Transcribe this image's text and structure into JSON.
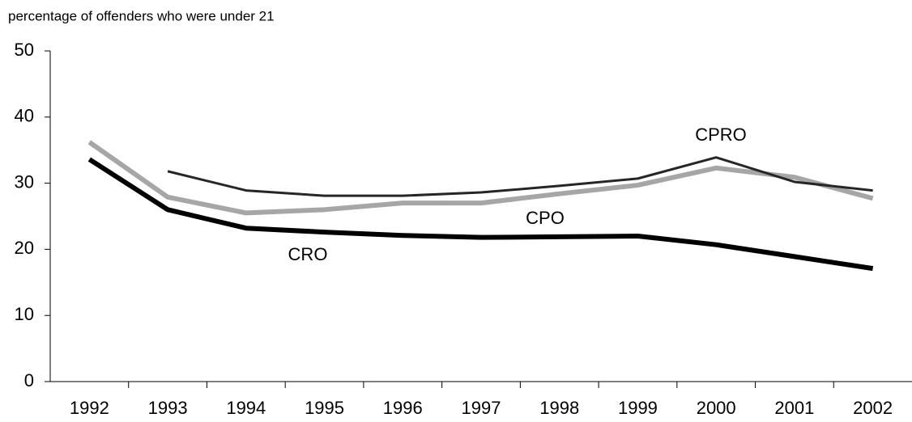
{
  "chart_data": {
    "type": "line",
    "y_axis_label": "percentage of offenders who were under 21",
    "categories": [
      "1992",
      "1993",
      "1994",
      "1995",
      "1996",
      "1997",
      "1998",
      "1999",
      "2000",
      "2001",
      "2002"
    ],
    "series": [
      {
        "name": "CRO",
        "color": "#000000",
        "values": [
          33.6,
          26.0,
          23.2,
          22.6,
          22.1,
          21.8,
          21.9,
          22.0,
          20.7,
          18.9,
          17.1
        ]
      },
      {
        "name": "CPO",
        "color": "#a6a6a6",
        "values": [
          36.2,
          27.9,
          25.5,
          26.0,
          27.0,
          27.0,
          28.4,
          29.7,
          32.3,
          30.9,
          27.7
        ]
      },
      {
        "name": "CPRO",
        "color": "#262626",
        "values": [
          null,
          31.8,
          28.9,
          28.1,
          28.1,
          28.6,
          29.6,
          30.7,
          33.9,
          30.2,
          28.9
        ]
      }
    ],
    "ylim": [
      0,
      50
    ],
    "yticks": [
      0,
      10,
      20,
      30,
      40,
      50
    ],
    "grid": false
  }
}
